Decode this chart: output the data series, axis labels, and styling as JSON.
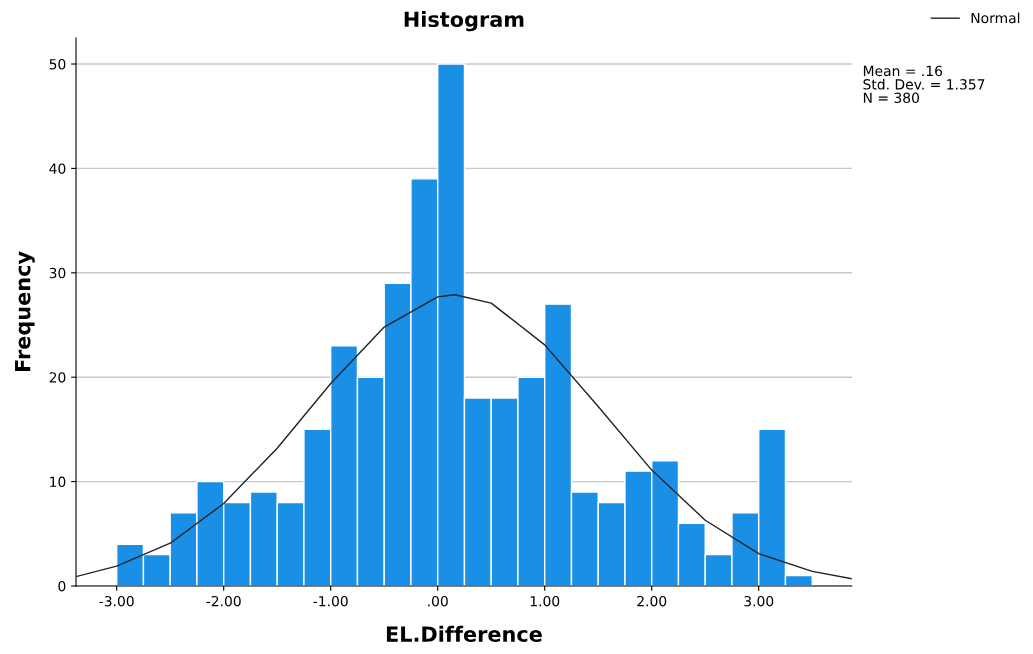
{
  "chart_data": {
    "type": "histogram",
    "title": "Histogram",
    "xlabel": "EL.Difference",
    "ylabel": "Frequency",
    "bins": [
      -3.0,
      -2.75,
      -2.5,
      -2.25,
      -2.0,
      -1.75,
      -1.5,
      -1.25,
      -1.0,
      -0.75,
      -0.5,
      -0.25,
      0.0,
      0.25,
      0.5,
      0.75,
      1.0,
      1.25,
      1.5,
      1.75,
      2.0,
      2.25,
      2.5,
      2.75,
      3.0,
      3.25,
      3.5
    ],
    "values": [
      4,
      3,
      7,
      10,
      8,
      9,
      8,
      15,
      23,
      20,
      29,
      39,
      50,
      18,
      18,
      20,
      27,
      9,
      8,
      11,
      12,
      6,
      3,
      7,
      15,
      1
    ],
    "color": "#1a8fe6",
    "series": [
      {
        "type": "line",
        "name": "Normal",
        "color": "#222222",
        "x": [
          -3.38,
          -3.0,
          -2.5,
          -2.0,
          -1.5,
          -1.0,
          -0.5,
          0.0,
          0.16,
          0.5,
          1.0,
          1.5,
          2.0,
          2.5,
          3.0,
          3.5,
          3.87
        ],
        "values": [
          0.9,
          1.9,
          4.1,
          7.9,
          13.2,
          19.4,
          24.8,
          27.7,
          27.9,
          27.1,
          23.1,
          17.2,
          11.1,
          6.3,
          3.1,
          1.4,
          0.7
        ]
      }
    ],
    "xlim": [
      -3.38,
      3.87
    ],
    "ylim": [
      0,
      52.5
    ],
    "xticks": [
      {
        "value": -3,
        "label": "-3.00"
      },
      {
        "value": -2,
        "label": "-2.00"
      },
      {
        "value": -1,
        "label": "-1.00"
      },
      {
        "value": 0,
        "label": ".00"
      },
      {
        "value": 1,
        "label": "1.00"
      },
      {
        "value": 2,
        "label": "2.00"
      },
      {
        "value": 3,
        "label": "3.00"
      }
    ],
    "yticks": [
      0,
      10,
      20,
      30,
      40,
      50
    ],
    "grid": "y",
    "legend": "top right",
    "annotations": [
      "Mean = .16\nStd. Dev. = 1.357\nN = 380"
    ]
  }
}
